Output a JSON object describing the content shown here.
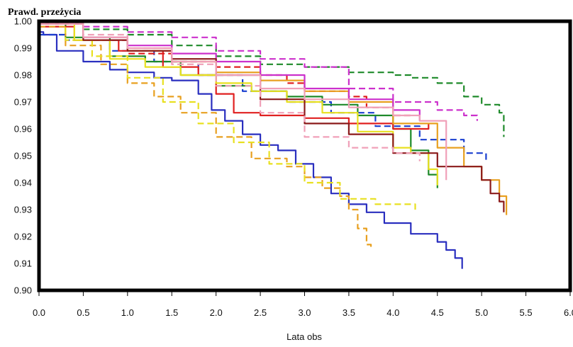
{
  "chart_data": {
    "type": "line",
    "title": "",
    "ylabel": "Prawd. przeżycia",
    "xlabel": "Lata obs",
    "xlim": [
      0.0,
      6.0
    ],
    "ylim": [
      0.9,
      1.0
    ],
    "x_ticks": [
      "0.0",
      "0.5",
      "1.0",
      "1.5",
      "2.0",
      "2.5",
      "3.0",
      "3.5",
      "4.0",
      "4.5",
      "5.0",
      "5.5",
      "6.0"
    ],
    "y_ticks": [
      "0.90",
      "0.91",
      "0.92",
      "0.93",
      "0.94",
      "0.95",
      "0.96",
      "0.97",
      "0.98",
      "0.99",
      "1.00"
    ],
    "grid": false,
    "legend": "none",
    "series": [
      {
        "color": "#2a2fbf",
        "dash": "solid",
        "x": [
          0.0,
          0.05,
          0.2,
          0.5,
          0.8,
          1.0,
          1.3,
          1.5,
          1.8,
          1.95,
          2.1,
          2.3,
          2.5,
          2.7,
          2.9,
          3.1,
          3.3,
          3.5,
          3.7,
          3.9,
          4.2,
          4.5,
          4.6,
          4.7,
          4.78
        ],
        "y": [
          0.996,
          0.995,
          0.989,
          0.985,
          0.982,
          0.981,
          0.979,
          0.978,
          0.973,
          0.967,
          0.963,
          0.958,
          0.954,
          0.952,
          0.947,
          0.942,
          0.936,
          0.932,
          0.929,
          0.925,
          0.921,
          0.918,
          0.915,
          0.912,
          0.908
        ]
      },
      {
        "color": "#1a3fd0",
        "dash": "dashed",
        "x": [
          0.0,
          0.3,
          0.8,
          1.3,
          1.8,
          2.3,
          2.8,
          3.3,
          3.8,
          4.3,
          4.8,
          5.05
        ],
        "y": [
          0.995,
          0.993,
          0.989,
          0.985,
          0.98,
          0.974,
          0.97,
          0.966,
          0.961,
          0.956,
          0.951,
          0.948
        ]
      },
      {
        "color": "#1e8a2a",
        "dash": "solid",
        "x": [
          0.0,
          0.3,
          0.8,
          1.2,
          1.6,
          2.0,
          2.4,
          2.8,
          3.2,
          3.6,
          4.0,
          4.2,
          4.4,
          4.5
        ],
        "y": [
          0.999,
          0.994,
          0.987,
          0.985,
          0.98,
          0.976,
          0.974,
          0.972,
          0.969,
          0.965,
          0.96,
          0.952,
          0.943,
          0.938
        ]
      },
      {
        "color": "#1e8a2a",
        "dash": "dashed",
        "x": [
          0.0,
          0.5,
          1.0,
          1.5,
          2.0,
          2.5,
          3.0,
          3.5,
          4.0,
          4.2,
          4.5,
          4.8,
          5.0,
          5.2,
          5.25
        ],
        "y": [
          0.999,
          0.997,
          0.995,
          0.991,
          0.987,
          0.984,
          0.983,
          0.981,
          0.98,
          0.979,
          0.977,
          0.972,
          0.969,
          0.966,
          0.957
        ]
      },
      {
        "color": "#e02020",
        "dash": "solid",
        "x": [
          0.0,
          0.4,
          0.9,
          1.4,
          1.8,
          2.0,
          2.2,
          2.5,
          3.0,
          3.5,
          4.0,
          4.4
        ],
        "y": [
          0.998,
          0.993,
          0.989,
          0.983,
          0.98,
          0.973,
          0.966,
          0.965,
          0.964,
          0.962,
          0.96,
          0.962
        ]
      },
      {
        "color": "#e02020",
        "dash": "dashed",
        "x": [
          0.0,
          0.5,
          1.0,
          1.5,
          2.0,
          2.5,
          2.8,
          3.0,
          3.5,
          3.7,
          4.0,
          4.2
        ],
        "y": [
          0.999,
          0.993,
          0.988,
          0.985,
          0.983,
          0.98,
          0.977,
          0.974,
          0.972,
          0.968,
          0.965,
          0.964
        ]
      },
      {
        "color": "#e8a020",
        "dash": "solid",
        "x": [
          0.0,
          0.5,
          1.0,
          1.5,
          2.0,
          2.5,
          3.0,
          3.5,
          4.0,
          4.5,
          4.8,
          5.0,
          5.2,
          5.28
        ],
        "y": [
          0.999,
          0.994,
          0.989,
          0.985,
          0.981,
          0.978,
          0.974,
          0.97,
          0.962,
          0.953,
          0.946,
          0.941,
          0.935,
          0.928
        ]
      },
      {
        "color": "#e8a020",
        "dash": "dashed",
        "x": [
          0.0,
          0.3,
          0.7,
          1.0,
          1.3,
          1.6,
          2.0,
          2.4,
          2.8,
          3.0,
          3.2,
          3.4,
          3.5,
          3.6,
          3.7,
          3.75
        ],
        "y": [
          0.998,
          0.991,
          0.984,
          0.977,
          0.972,
          0.966,
          0.957,
          0.949,
          0.946,
          0.942,
          0.938,
          0.935,
          0.93,
          0.923,
          0.917,
          0.915
        ]
      },
      {
        "color": "#e8e020",
        "dash": "solid",
        "x": [
          0.0,
          0.4,
          0.8,
          1.2,
          1.6,
          2.0,
          2.4,
          2.8,
          3.2,
          3.6,
          4.0,
          4.2,
          4.4,
          4.5
        ],
        "y": [
          0.999,
          0.993,
          0.986,
          0.983,
          0.98,
          0.977,
          0.974,
          0.97,
          0.966,
          0.959,
          0.953,
          0.951,
          0.945,
          0.939
        ]
      },
      {
        "color": "#e8e020",
        "dash": "dashed",
        "x": [
          0.0,
          0.3,
          0.6,
          1.0,
          1.4,
          1.8,
          2.2,
          2.6,
          3.0,
          3.4,
          3.8,
          4.25
        ],
        "y": [
          0.999,
          0.993,
          0.987,
          0.979,
          0.97,
          0.962,
          0.955,
          0.947,
          0.94,
          0.934,
          0.932,
          0.93
        ]
      },
      {
        "color": "#cc30cc",
        "dash": "solid",
        "x": [
          0.0,
          0.5,
          1.0,
          1.5,
          2.0,
          2.5,
          3.0,
          3.5,
          4.0,
          4.3
        ],
        "y": [
          0.999,
          0.994,
          0.991,
          0.988,
          0.985,
          0.98,
          0.975,
          0.971,
          0.967,
          0.963
        ]
      },
      {
        "color": "#cc30cc",
        "dash": "dashed",
        "x": [
          0.0,
          0.5,
          1.0,
          1.5,
          2.0,
          2.5,
          3.0,
          3.5,
          4.0,
          4.5,
          4.8,
          4.95
        ],
        "y": [
          1.0,
          0.998,
          0.996,
          0.994,
          0.989,
          0.986,
          0.983,
          0.975,
          0.97,
          0.967,
          0.965,
          0.963
        ]
      },
      {
        "color": "#8b1a1a",
        "dash": "solid",
        "x": [
          0.0,
          0.5,
          1.0,
          1.5,
          2.0,
          2.5,
          3.0,
          3.5,
          4.0,
          4.5,
          5.0,
          5.1,
          5.2,
          5.25
        ],
        "y": [
          0.999,
          0.993,
          0.989,
          0.986,
          0.98,
          0.971,
          0.962,
          0.958,
          0.951,
          0.946,
          0.941,
          0.936,
          0.933,
          0.929
        ]
      },
      {
        "color": "#f0a0b8",
        "dash": "solid",
        "x": [
          0.0,
          0.5,
          1.0,
          1.5,
          2.0,
          2.5,
          3.0,
          3.5,
          4.0,
          4.3,
          4.6
        ],
        "y": [
          0.999,
          0.994,
          0.99,
          0.985,
          0.98,
          0.975,
          0.971,
          0.968,
          0.965,
          0.963,
          0.941
        ]
      },
      {
        "color": "#f0a0b8",
        "dash": "dashed",
        "x": [
          0.0,
          0.5,
          1.0,
          1.5,
          2.0,
          2.5,
          3.0,
          3.5,
          4.0,
          4.3
        ],
        "y": [
          0.999,
          0.995,
          0.99,
          0.984,
          0.976,
          0.966,
          0.957,
          0.953,
          0.951,
          0.948
        ]
      }
    ]
  }
}
